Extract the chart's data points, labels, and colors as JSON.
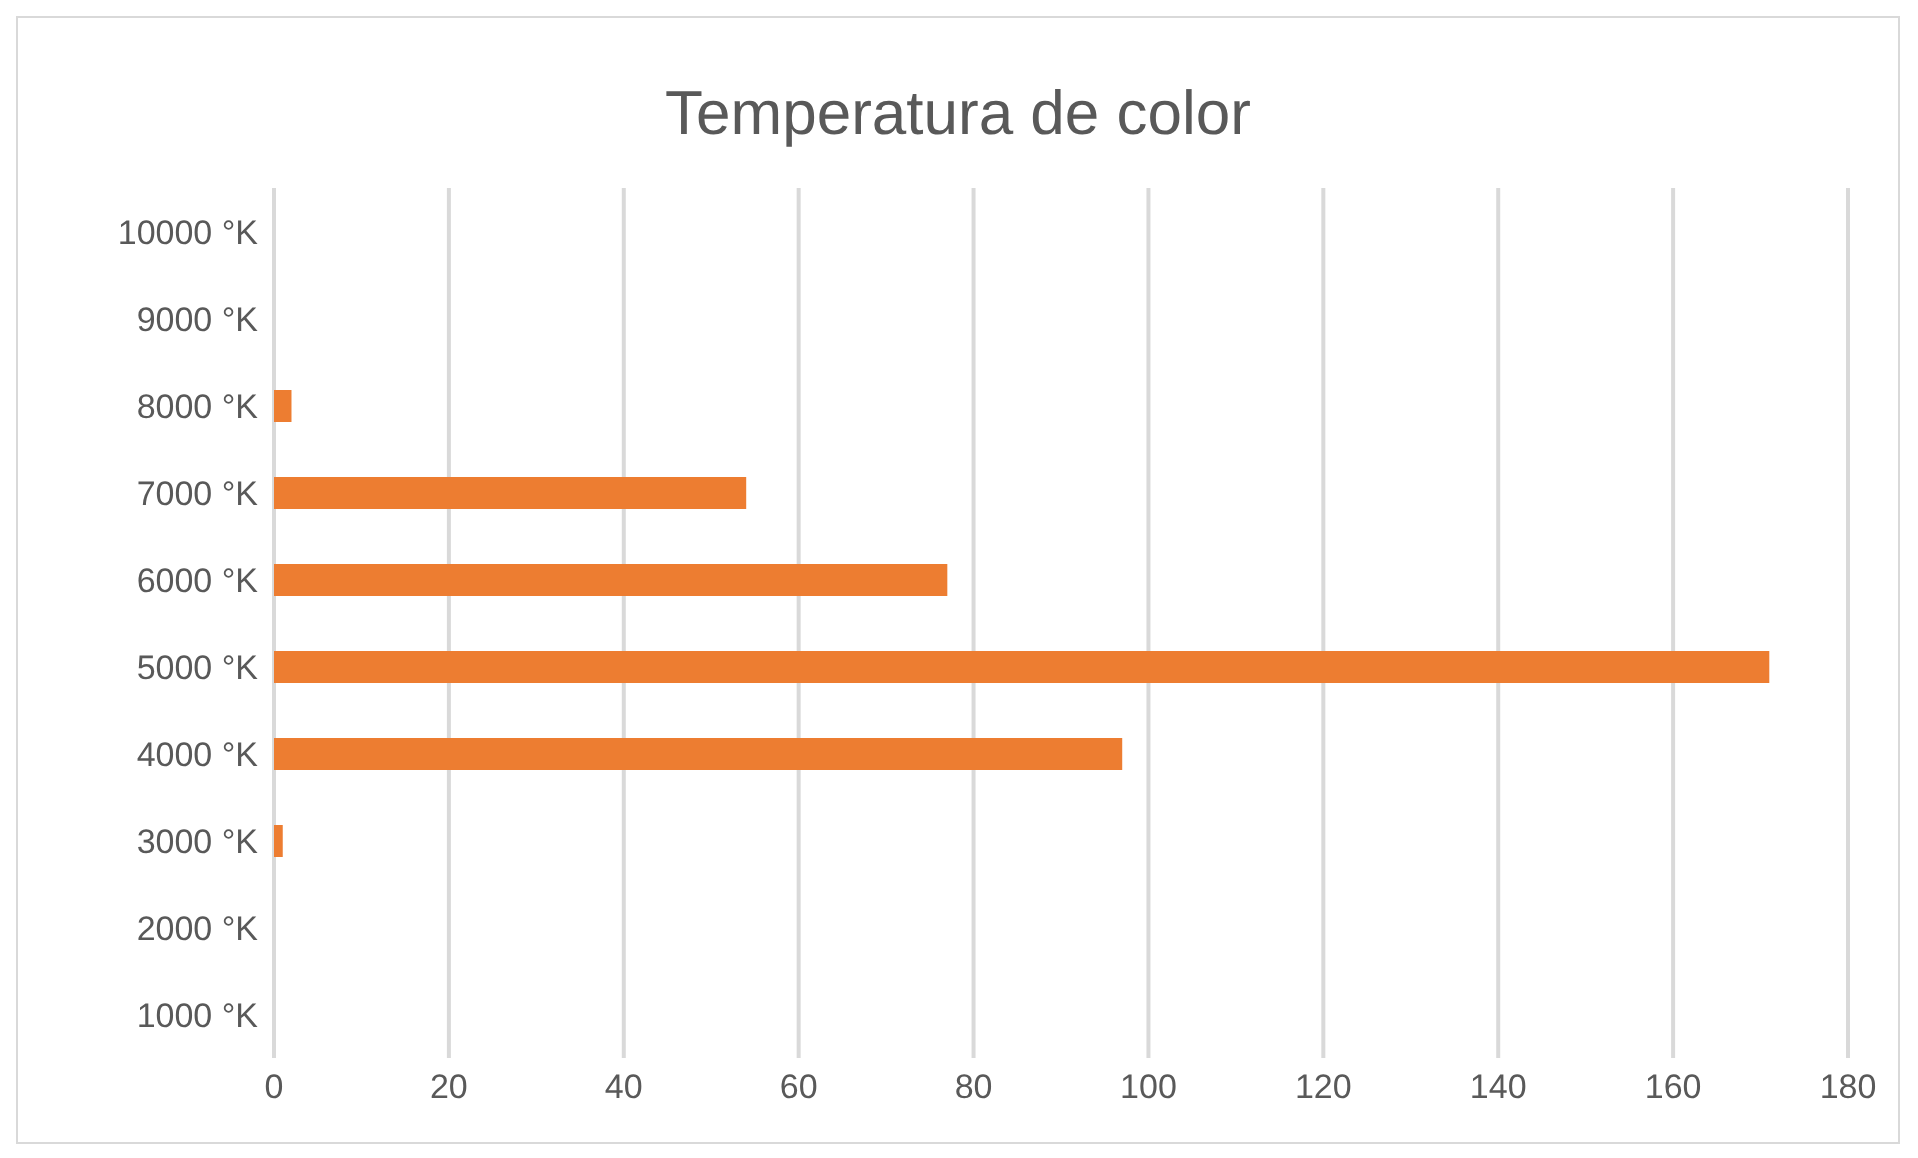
{
  "chart_data": {
    "type": "bar",
    "orientation": "horizontal",
    "title": "Temperatura de color",
    "categories": [
      "10000 °K",
      "9000 °K",
      "8000 °K",
      "7000 °K",
      "6000 °K",
      "5000 °K",
      "4000 °K",
      "3000 °K",
      "2000 °K",
      "1000 °K"
    ],
    "values": [
      0,
      0,
      2,
      54,
      77,
      171,
      97,
      1,
      0,
      0
    ],
    "color": "#ed7d31",
    "xlim": [
      0,
      180
    ],
    "xticks": [
      0,
      20,
      40,
      60,
      80,
      100,
      120,
      140,
      160,
      180
    ],
    "grid": "x"
  }
}
